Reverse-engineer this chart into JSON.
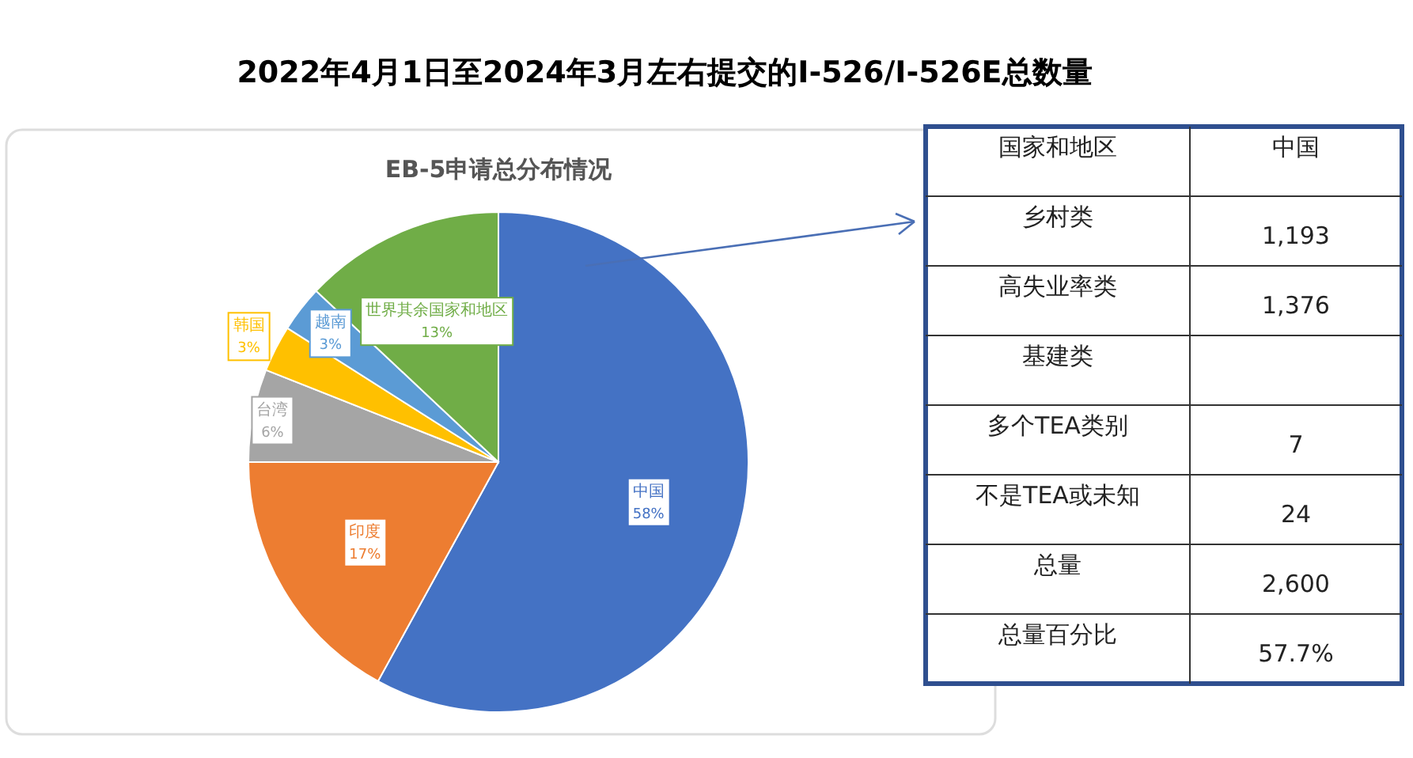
{
  "chart_data": [
    {
      "type": "pie",
      "title": "2022年4月1日至2024年3月左右提交的I-526/I-526E总数量",
      "subtitle": "EB-5申请总分布情况",
      "categories": [
        "中国",
        "印度",
        "台湾",
        "韩国",
        "越南",
        "世界其余国家和地区"
      ],
      "values": [
        58,
        17,
        6,
        3,
        3,
        13
      ],
      "colors": [
        "#4472c4",
        "#ed7d31",
        "#a5a5a5",
        "#ffc000",
        "#5b9bd5",
        "#70ad47"
      ],
      "value_labels": [
        "58%",
        "17%",
        "6%",
        "3%",
        "3%",
        "13%"
      ],
      "legend": false
    },
    {
      "type": "other",
      "categories": [
        "国家和地区",
        "中国"
      ],
      "y_categories": [
        "乡村类",
        "高失业率类",
        "基建类",
        "多个TEA类别",
        "不是TEA或未知",
        "总量",
        "总量百分比"
      ],
      "cell_labels": [
        [
          "1,193"
        ],
        [
          "1,376"
        ],
        [
          null
        ],
        [
          "7"
        ],
        [
          "24"
        ],
        [
          "2,600"
        ],
        [
          "57.7%"
        ]
      ]
    }
  ]
}
